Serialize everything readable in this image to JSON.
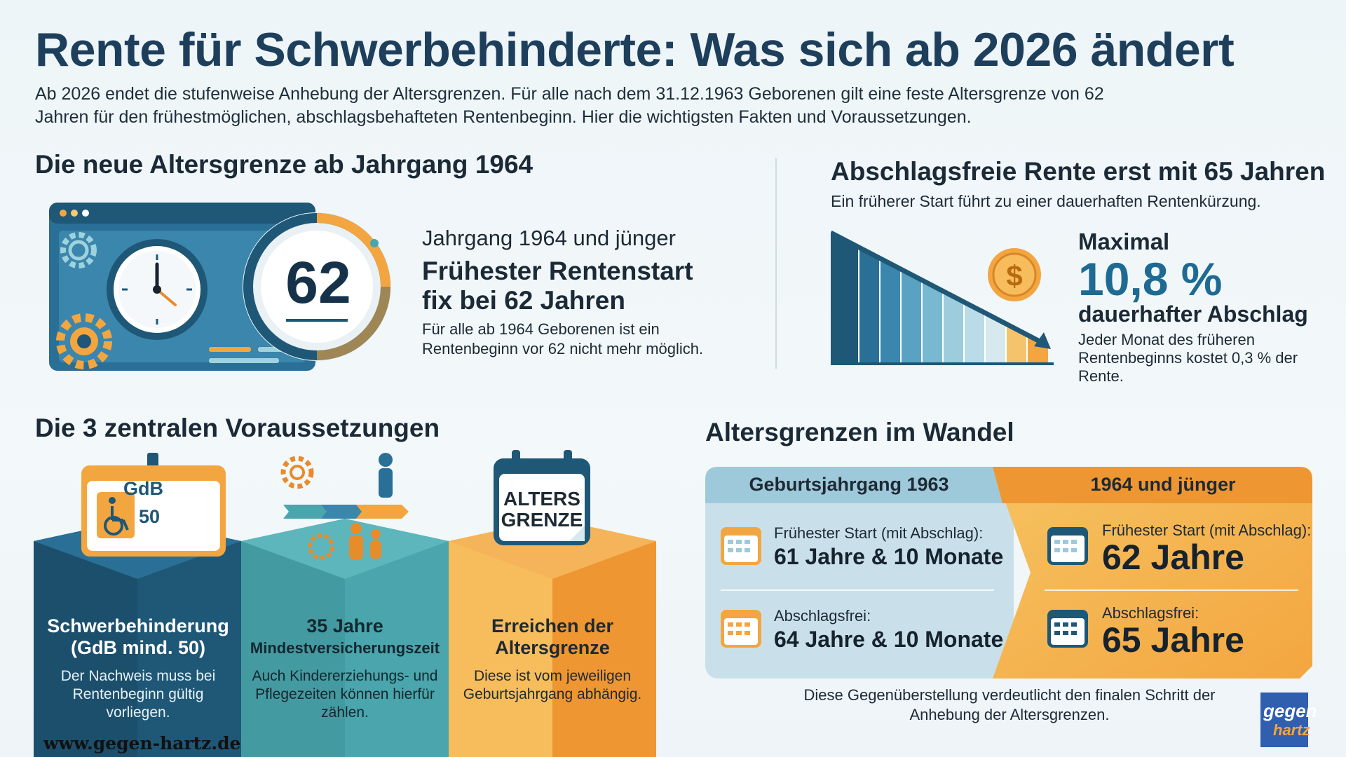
{
  "title": "Rente für Schwerbehinderte: Was sich ab 2026 ändert",
  "intro": "Ab 2026 endet die stufenweise Anhebung der Altersgrenzen. Für alle nach dem 31.12.1963 Geborenen gilt eine feste Altersgrenze von 62 Jahren für den frühestmöglichen, abschlagsbehafteten Rentenbeginn. Hier die wichtigsten Fakten und Voraussetzungen.",
  "new_age_limit": {
    "heading": "Die neue Altersgrenze ab Jahrgang 1964",
    "badge_number": "62",
    "small_title": "Jahrgang 1964 und jünger",
    "big_title": "Frühester Rentenstart fix bei 62 Jahren",
    "text": "Für alle ab 1964 Geborenen ist ein Rentenbeginn vor 62 nicht mehr möglich.",
    "icons": [
      "browser-window-icon",
      "clock-icon",
      "gear-icon",
      "calendar-icon"
    ]
  },
  "deduction": {
    "heading": "Abschlagsfreie Rente erst mit 65 Jahren",
    "subtitle": "Ein früherer Start führt zu einer dauerhaften Rentenkürzung.",
    "max_label": "Maximal",
    "max_value": "10,8 %",
    "max_desc": "dauerhafter Abschlag",
    "text": "Jeder Monat des früheren Rentenbeginns kostet 0,3 % der Rente.",
    "coin_symbol": "$"
  },
  "requirements": {
    "heading": "Die 3 zentralen Voraussetzungen",
    "badge_gdb": "GdB",
    "badge_50": "50",
    "calendar_text_1": "ALTERS",
    "calendar_text_2": "GRENZE",
    "items": [
      {
        "title": "Schwerbehinderung (GdB mind. 50)",
        "text": "Der Nachweis muss bei Rentenbeginn gültig vorliegen.",
        "color": "#1f5776"
      },
      {
        "title_1": "35 Jahre",
        "title_2": "Mindestversicherungszeit",
        "text": "Auch Kindererziehungs- und Pflegezeiten können hierfür zählen.",
        "color": "#4aa5ac"
      },
      {
        "title": "Erreichen der Altersgrenze",
        "text": "Diese ist vom jeweiligen Geburtsjahrgang abhängig.",
        "color": "#f3a640"
      }
    ]
  },
  "comparison": {
    "heading": "Altersgrenzen im Wandel",
    "left": {
      "header": "Geburtsjahrgang 1963",
      "row1_label": "Frühester Start (mit Abschlag):",
      "row1_value": "61 Jahre & 10 Monate",
      "row2_label": "Abschlagsfrei:",
      "row2_value": "64 Jahre & 10 Monate"
    },
    "right": {
      "header": "1964 und jünger",
      "row1_label": "Frühester Start (mit Abschlag):",
      "row1_value": "62 Jahre",
      "row2_label": "Abschlagsfrei:",
      "row2_value": "65 Jahre"
    },
    "note": "Diese Gegenüberstellung verdeutlicht den finalen Schritt der Anhebung der Altersgrenzen."
  },
  "footer": {
    "website": "www.gegen-hartz.de",
    "logo_line1": "gegen",
    "logo_line2": "hartz"
  },
  "colors": {
    "title": "#1e3f5c",
    "dark_blue": "#1f5776",
    "teal": "#4aa5ac",
    "orange": "#f3a640",
    "accent_blue": "#1e6a93"
  }
}
